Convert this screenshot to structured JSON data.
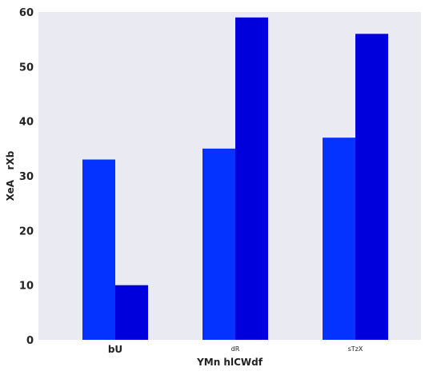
{
  "chart_data": {
    "type": "bar",
    "categories": [
      "bU",
      "dR",
      "sTzX"
    ],
    "category_label_styles": [
      "bold",
      "small",
      "small"
    ],
    "series": [
      {
        "color": "#0433ff",
        "values": [
          33,
          35,
          37
        ]
      },
      {
        "color": "#0000dd",
        "values": [
          10,
          59,
          56
        ]
      }
    ],
    "xlabel": "YMn hlCWdf",
    "ylabel": "XeA   rXb",
    "ylim": [
      0,
      60
    ],
    "yticks": [
      "0",
      "10",
      "20",
      "30",
      "40",
      "50",
      "60"
    ],
    "grid": false,
    "background": "#e9eaf2"
  }
}
